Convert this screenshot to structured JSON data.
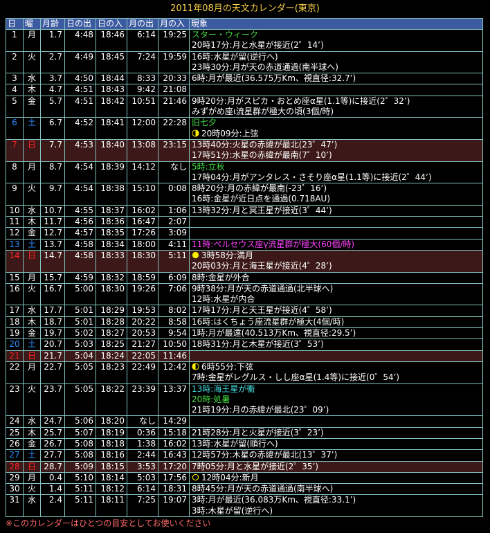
{
  "title": "2011年08月の天文カレンダー(東京)",
  "colors": {
    "header_bg": "#3c5aa0",
    "sunday_row_bg": "#3c1818",
    "saturday": "#2c8cff",
    "sunday": "#ff2424",
    "green": "#44dd44",
    "magenta": "#ff44ff",
    "cyan": "#44dddd",
    "moon_yellow": "#ffee00",
    "title": "#f8d048",
    "footnote": "#ff6868"
  },
  "headers": [
    "日",
    "曜",
    "月齢",
    "日の出",
    "日の入",
    "月の出",
    "月の入",
    "現象"
  ],
  "days": [
    {
      "day": "1",
      "wd": "月",
      "age": "1.7",
      "sr": "4:48",
      "ss": "18:46",
      "mr": "6:14",
      "ms": "19:25",
      "type": "",
      "events": [
        {
          "text": "スター・ウィーク",
          "color": "green"
        },
        {
          "text": "20時17分:月と水星が接近(2゜14’)"
        }
      ]
    },
    {
      "day": "2",
      "wd": "火",
      "age": "2.7",
      "sr": "4:49",
      "ss": "18:45",
      "mr": "7:24",
      "ms": "19:59",
      "type": "",
      "events": [
        {
          "text": "16時:水星が留(逆行へ)"
        },
        {
          "text": "23時30分:月が天の赤道通過(南半球へ)"
        }
      ]
    },
    {
      "day": "3",
      "wd": "水",
      "age": "3.7",
      "sr": "4:50",
      "ss": "18:44",
      "mr": "8:33",
      "ms": "20:33",
      "type": "",
      "events": [
        {
          "text": "6時:月が最近(36.575万Km、視直径:32.7’)"
        }
      ]
    },
    {
      "day": "4",
      "wd": "木",
      "age": "4.7",
      "sr": "4:51",
      "ss": "18:43",
      "mr": "9:42",
      "ms": "21:08",
      "type": "",
      "events": []
    },
    {
      "day": "5",
      "wd": "金",
      "age": "5.7",
      "sr": "4:51",
      "ss": "18:42",
      "mr": "10:51",
      "ms": "21:46",
      "type": "",
      "events": [
        {
          "text": "9時20分:月がスピカ・おとめ座α星(1.1等)に接近(2゜32’)"
        },
        {
          "text": "みずがめ座ι流星群が極大の頃(3個/時)"
        }
      ]
    },
    {
      "day": "6",
      "wd": "土",
      "age": "6.7",
      "sr": "4:52",
      "ss": "18:41",
      "mr": "12:00",
      "ms": "22:28",
      "type": "sat",
      "events": [
        {
          "text": "旧七夕",
          "color": "green"
        },
        {
          "text": "20時09分:上弦",
          "moon": "first-quarter"
        }
      ]
    },
    {
      "day": "7",
      "wd": "日",
      "age": "7.7",
      "sr": "4:53",
      "ss": "18:40",
      "mr": "13:08",
      "ms": "23:15",
      "type": "sun",
      "events": [
        {
          "text": "13時40分:火星の赤緯が最北(23゜47’)"
        },
        {
          "text": "17時51分:水星の赤緯が最南(7゜10’)"
        }
      ]
    },
    {
      "day": "8",
      "wd": "月",
      "age": "8.7",
      "sr": "4:54",
      "ss": "18:39",
      "mr": "14:12",
      "ms": "なし",
      "type": "",
      "events": [
        {
          "text": "5時:立秋",
          "color": "green"
        },
        {
          "text": "17時04分:月がアンタレス・さそり座α星(1.1等)に接近(2゜44’)"
        }
      ]
    },
    {
      "day": "9",
      "wd": "火",
      "age": "9.7",
      "sr": "4:54",
      "ss": "18:38",
      "mr": "15:10",
      "ms": "0:08",
      "type": "",
      "events": [
        {
          "text": "8時20分:月の赤緯が最南(-23゜16’)"
        },
        {
          "text": "16時:金星が近日点を通過(0.718AU)"
        }
      ]
    },
    {
      "day": "10",
      "wd": "水",
      "age": "10.7",
      "sr": "4:55",
      "ss": "18:37",
      "mr": "16:02",
      "ms": "1:06",
      "type": "",
      "events": [
        {
          "text": "13時32分:月と冥王星が接近(3゜44’)"
        }
      ]
    },
    {
      "day": "11",
      "wd": "木",
      "age": "11.7",
      "sr": "4:56",
      "ss": "18:36",
      "mr": "16:47",
      "ms": "2:07",
      "type": "",
      "events": []
    },
    {
      "day": "12",
      "wd": "金",
      "age": "12.7",
      "sr": "4:57",
      "ss": "18:35",
      "mr": "17:26",
      "ms": "3:09",
      "type": "",
      "events": []
    },
    {
      "day": "13",
      "wd": "土",
      "age": "13.7",
      "sr": "4:58",
      "ss": "18:34",
      "mr": "18:00",
      "ms": "4:11",
      "type": "sat",
      "events": [
        {
          "text": "11時:ペルセウス座γ流星群が極大(60個/時)",
          "color": "magenta"
        }
      ]
    },
    {
      "day": "14",
      "wd": "日",
      "age": "14.7",
      "sr": "4:58",
      "ss": "18:33",
      "mr": "18:30",
      "ms": "5:11",
      "type": "sun",
      "events": [
        {
          "text": "3時58分:満月",
          "moon": "full"
        },
        {
          "text": "20時03分:月と海王星が接近(4゜28’)"
        }
      ]
    },
    {
      "day": "15",
      "wd": "月",
      "age": "15.7",
      "sr": "4:59",
      "ss": "18:32",
      "mr": "18:59",
      "ms": "6:09",
      "type": "",
      "events": [
        {
          "text": "8時:金星が外合"
        }
      ]
    },
    {
      "day": "16",
      "wd": "火",
      "age": "16.7",
      "sr": "5:00",
      "ss": "18:30",
      "mr": "19:26",
      "ms": "7:06",
      "type": "",
      "events": [
        {
          "text": "9時38分:月が天の赤道通過(北半球へ)"
        },
        {
          "text": "12時:水星が内合"
        }
      ]
    },
    {
      "day": "17",
      "wd": "水",
      "age": "17.7",
      "sr": "5:01",
      "ss": "18:29",
      "mr": "19:53",
      "ms": "8:02",
      "type": "",
      "events": [
        {
          "text": "17時17分:月と天王星が接近(4゜58’)"
        }
      ]
    },
    {
      "day": "18",
      "wd": "木",
      "age": "18.7",
      "sr": "5:01",
      "ss": "18:28",
      "mr": "20:22",
      "ms": "8:58",
      "type": "",
      "events": [
        {
          "text": "16時:はくちょう座流星群が極大(4個/時)"
        }
      ]
    },
    {
      "day": "19",
      "wd": "金",
      "age": "19.7",
      "sr": "5:02",
      "ss": "18:27",
      "mr": "20:53",
      "ms": "9:54",
      "type": "",
      "events": [
        {
          "text": "1時:月が最遠(40.513万Km、視直径:29.5’)"
        }
      ]
    },
    {
      "day": "20",
      "wd": "土",
      "age": "20.7",
      "sr": "5:03",
      "ss": "18:25",
      "mr": "21:27",
      "ms": "10:50",
      "type": "sat",
      "events": [
        {
          "text": "18時31分:月と木星が接近(3゜53’)"
        }
      ]
    },
    {
      "day": "21",
      "wd": "日",
      "age": "21.7",
      "sr": "5:04",
      "ss": "18:24",
      "mr": "22:05",
      "ms": "11:46",
      "type": "sun",
      "events": []
    },
    {
      "day": "22",
      "wd": "月",
      "age": "22.7",
      "sr": "5:05",
      "ss": "18:23",
      "mr": "22:49",
      "ms": "12:42",
      "type": "",
      "events": [
        {
          "text": "6時55分:下弦",
          "moon": "last-quarter"
        },
        {
          "text": "7時:金星がレグルス・しし座α星(1.4等)に接近(0゜54’)"
        }
      ]
    },
    {
      "day": "23",
      "wd": "火",
      "age": "23.7",
      "sr": "5:05",
      "ss": "18:22",
      "mr": "23:39",
      "ms": "13:37",
      "type": "",
      "events": [
        {
          "text": "13時:海王星が衝",
          "color": "cyan"
        },
        {
          "text": "20時:処暑",
          "color": "green"
        },
        {
          "text": "21時19分:月の赤緯が最北(23゜09’)"
        }
      ]
    },
    {
      "day": "24",
      "wd": "水",
      "age": "24.7",
      "sr": "5:06",
      "ss": "18:20",
      "mr": "なし",
      "ms": "14:29",
      "type": "",
      "events": []
    },
    {
      "day": "25",
      "wd": "木",
      "age": "25.7",
      "sr": "5:07",
      "ss": "18:19",
      "mr": "0:36",
      "ms": "15:18",
      "type": "",
      "events": [
        {
          "text": "21時28分:月と火星が接近(3゜23’)"
        }
      ]
    },
    {
      "day": "26",
      "wd": "金",
      "age": "26.7",
      "sr": "5:08",
      "ss": "18:18",
      "mr": "1:38",
      "ms": "16:02",
      "type": "",
      "events": [
        {
          "text": "13時:水星が留(順行へ)"
        }
      ]
    },
    {
      "day": "27",
      "wd": "土",
      "age": "27.7",
      "sr": "5:08",
      "ss": "18:16",
      "mr": "2:44",
      "ms": "16:43",
      "type": "sat",
      "events": [
        {
          "text": "12時57分:木星の赤緯が最北(13゜37’)"
        }
      ]
    },
    {
      "day": "28",
      "wd": "日",
      "age": "28.7",
      "sr": "5:09",
      "ss": "18:15",
      "mr": "3:53",
      "ms": "17:20",
      "type": "sun",
      "events": [
        {
          "text": "7時05分:月と水星が接近(2゜35’)"
        }
      ]
    },
    {
      "day": "29",
      "wd": "月",
      "age": "0.4",
      "sr": "5:10",
      "ss": "18:14",
      "mr": "5:03",
      "ms": "17:56",
      "type": "",
      "events": [
        {
          "text": "12時04分:新月",
          "moon": "new"
        }
      ]
    },
    {
      "day": "30",
      "wd": "火",
      "age": "1.4",
      "sr": "5:11",
      "ss": "18:12",
      "mr": "6:14",
      "ms": "18:31",
      "type": "",
      "events": [
        {
          "text": "8時45分:月が天の赤道通過(南半球へ)"
        }
      ]
    },
    {
      "day": "31",
      "wd": "水",
      "age": "2.4",
      "sr": "5:11",
      "ss": "18:11",
      "mr": "7:25",
      "ms": "19:07",
      "type": "",
      "events": [
        {
          "text": "3時:月が最近(36.083万Km、視直径:33.1’)"
        },
        {
          "text": "3時:木星が留(逆行へ)"
        }
      ]
    }
  ],
  "footnote": "※このカレンダーはひとつの目安としてお使いください"
}
